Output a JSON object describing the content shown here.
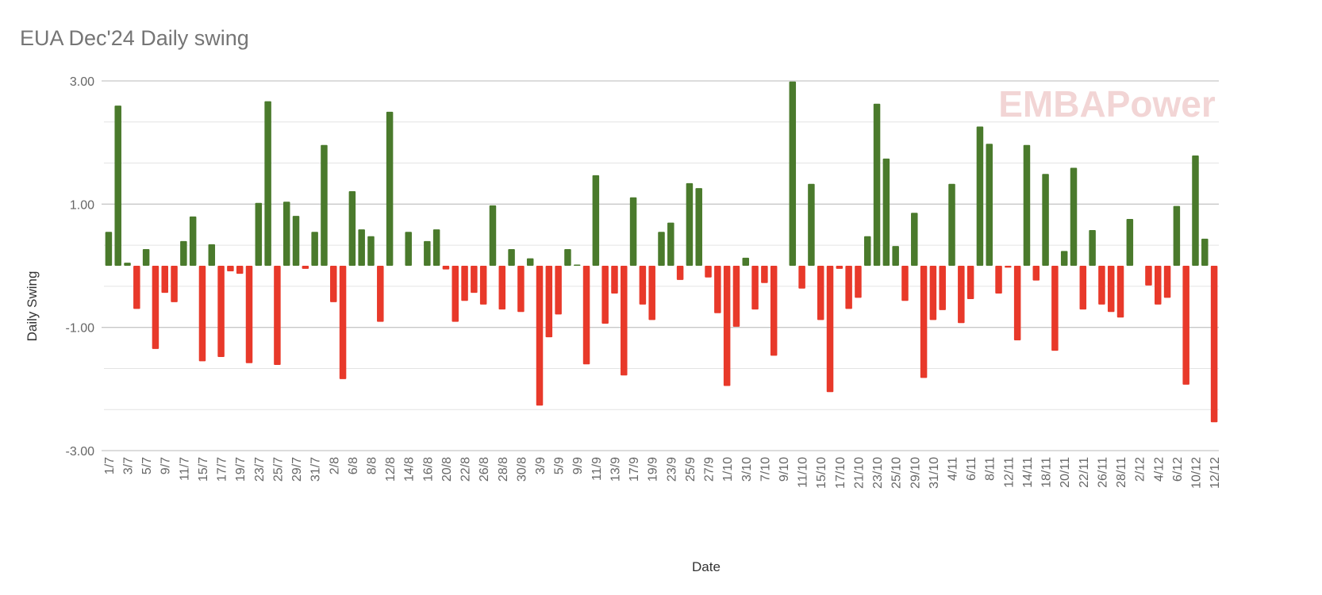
{
  "chart_data": {
    "type": "bar",
    "title": "EUA Dec'24 Daily swing",
    "x_label": "Date",
    "y_label": "Daily Swing",
    "watermark": "EMBAPower",
    "positive_color": "#4a7a2c",
    "negative_color": "#e8392a",
    "grid": true,
    "minor_grid_divisions": 3,
    "ylim": [
      -3,
      3
    ],
    "yticks": [
      {
        "value": -3,
        "label": "-3.00"
      },
      {
        "value": -1,
        "label": "-1.00"
      },
      {
        "value": 1,
        "label": "1.00"
      },
      {
        "value": 3,
        "label": "3.00"
      }
    ],
    "categories": [
      "1/7",
      null,
      "3/7",
      null,
      "5/7",
      null,
      "9/7",
      null,
      "11/7",
      null,
      "15/7",
      null,
      "17/7",
      null,
      "19/7",
      null,
      "23/7",
      null,
      "25/7",
      null,
      "29/7",
      null,
      "31/7",
      null,
      "2/8",
      null,
      "6/8",
      null,
      "8/8",
      null,
      "12/8",
      null,
      "14/8",
      null,
      "16/8",
      null,
      "20/8",
      null,
      "22/8",
      null,
      "26/8",
      null,
      "28/8",
      null,
      "30/8",
      null,
      "3/9",
      null,
      "5/9",
      null,
      "9/9",
      null,
      "11/9",
      null,
      "13/9",
      null,
      "17/9",
      null,
      "19/9",
      null,
      "23/9",
      null,
      "25/9",
      null,
      "27/9",
      null,
      "1/10",
      null,
      "3/10",
      null,
      "7/10",
      null,
      "9/10",
      null,
      "11/10",
      null,
      "15/10",
      null,
      "17/10",
      null,
      "21/10",
      null,
      "23/10",
      null,
      "25/10",
      null,
      "29/10",
      null,
      "31/10",
      null,
      "4/11",
      null,
      "6/11",
      null,
      "8/11",
      null,
      "12/11",
      null,
      "14/11",
      null,
      "18/11",
      null,
      "20/11",
      null,
      "22/11",
      null,
      "26/11",
      null,
      "28/11",
      null,
      "2/12",
      null,
      "4/12",
      null,
      "6/12",
      null,
      "10/12",
      null,
      "12/12"
    ],
    "values": [
      0.55,
      2.6,
      0.05,
      -0.7,
      0.27,
      -1.35,
      -0.44,
      -0.59,
      0.4,
      0.8,
      -1.55,
      0.35,
      -1.48,
      -0.09,
      -0.13,
      -1.58,
      1.02,
      2.67,
      -1.61,
      1.04,
      0.81,
      -0.05,
      0.55,
      1.96,
      -0.59,
      -1.84,
      1.21,
      0.59,
      0.48,
      -0.91,
      2.5,
      0,
      0.55,
      0,
      0.4,
      0.59,
      -0.06,
      -0.91,
      -0.57,
      -0.44,
      -0.63,
      0.98,
      -0.71,
      0.27,
      -0.75,
      0.12,
      -2.27,
      -1.16,
      -0.79,
      0.27,
      0.02,
      -1.6,
      1.47,
      -0.94,
      -0.45,
      -1.78,
      1.11,
      -0.63,
      -0.88,
      0.55,
      0.7,
      -0.23,
      1.34,
      1.26,
      -0.19,
      -0.77,
      -1.95,
      -0.99,
      0.13,
      -0.71,
      -0.28,
      -1.46,
      0,
      2.99,
      -0.37,
      1.33,
      -0.88,
      -2.05,
      -0.05,
      -0.7,
      -0.52,
      0.48,
      2.63,
      1.74,
      0.32,
      -0.57,
      0.86,
      -1.82,
      -0.88,
      -0.72,
      1.33,
      -0.93,
      -0.54,
      2.26,
      1.98,
      -0.45,
      -0.03,
      -1.21,
      1.96,
      -0.24,
      1.49,
      -1.38,
      0.24,
      1.59,
      -0.71,
      0.58,
      -0.63,
      -0.75,
      -0.84,
      0.76,
      0,
      -0.32,
      -0.63,
      -0.52,
      0.97,
      -1.93,
      1.79,
      0.44,
      -2.54
    ]
  }
}
